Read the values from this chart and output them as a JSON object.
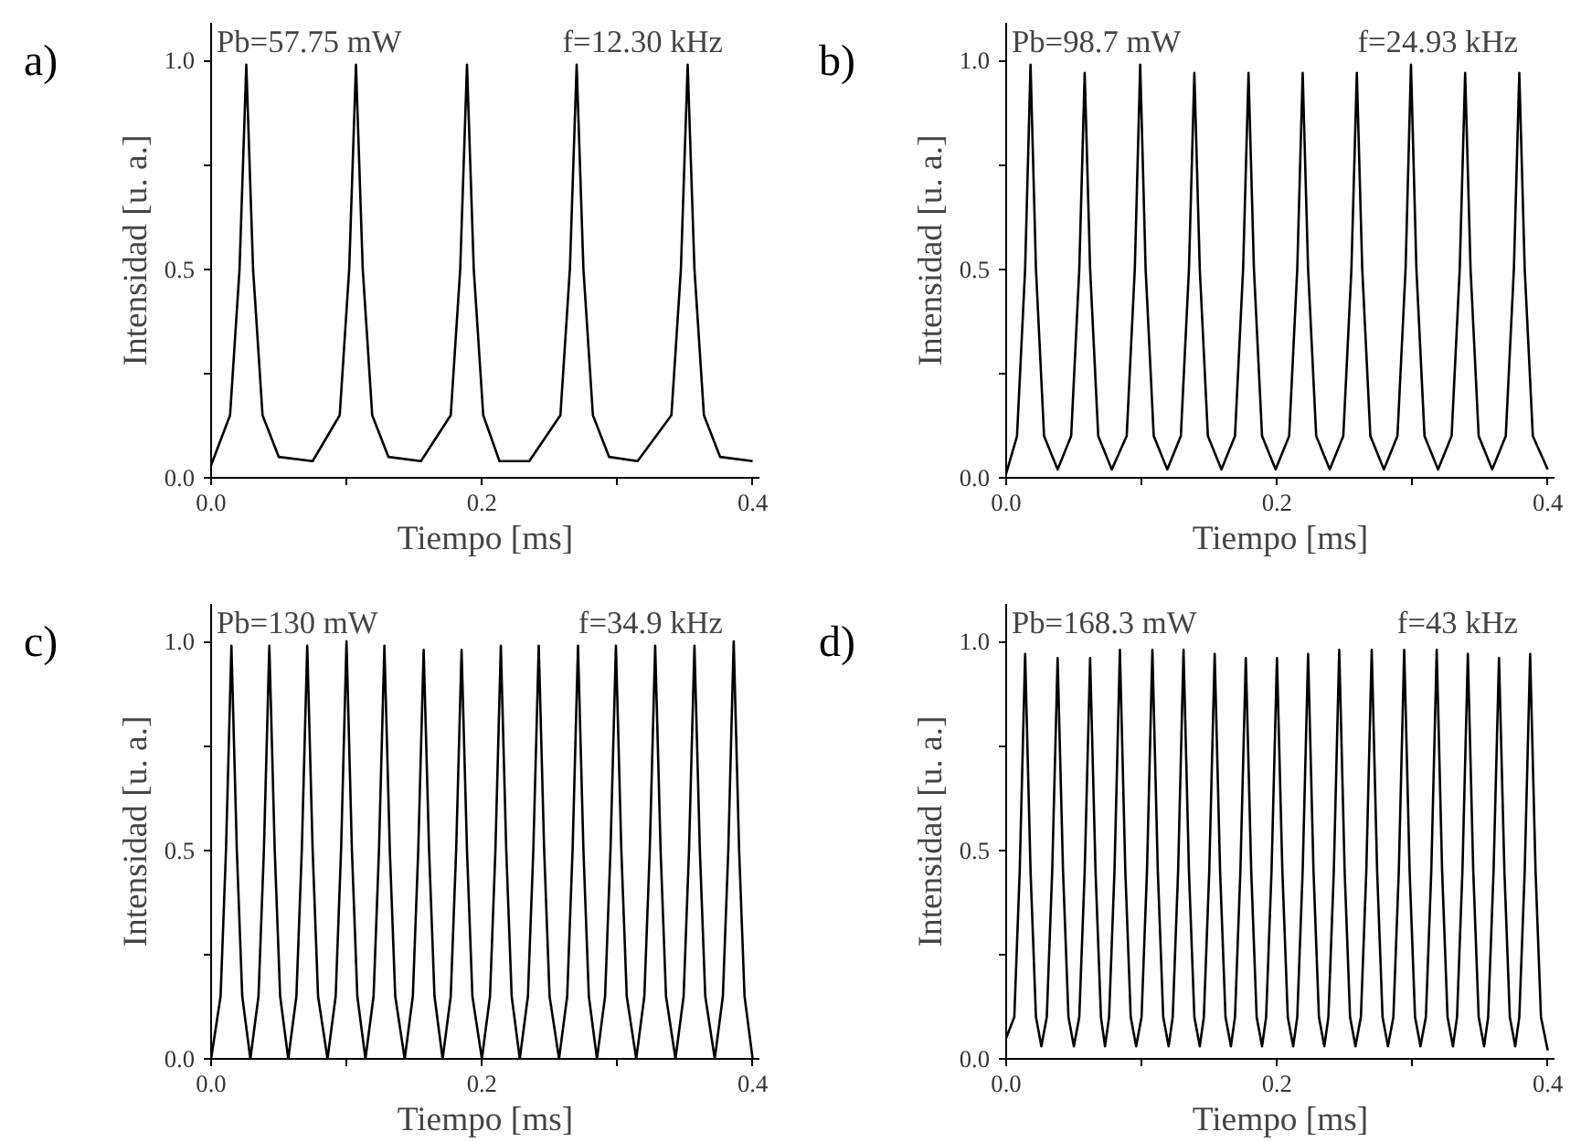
{
  "chart_data": [
    {
      "type": "line",
      "xlabel": "Tiempo [ms]",
      "ylabel": "Intensidad [u. a.]",
      "annotations": [
        "a)",
        "Pb=57.75 mW",
        "f=12.30 kHz"
      ],
      "xlim": [
        0,
        0.405
      ],
      "ylim": [
        0,
        1.09
      ],
      "xticks": [
        {
          "value": 0,
          "label": "0.0"
        },
        {
          "value": 0.1,
          "label": null
        },
        {
          "value": 0.2,
          "label": "0.2"
        },
        {
          "value": 0.3,
          "label": null
        },
        {
          "value": 0.4,
          "label": "0.4"
        }
      ],
      "yticks": [
        {
          "value": 0,
          "label": "0.0"
        },
        {
          "value": 0.25,
          "label": null
        },
        {
          "value": 0.5,
          "label": "0.5"
        },
        {
          "value": 0.75,
          "label": null
        },
        {
          "value": 1,
          "label": "1.0"
        }
      ],
      "grid": false,
      "line_style": "solid",
      "x": [
        0,
        0.014,
        0.021,
        0.026,
        0.031,
        0.038,
        0.05,
        0.075,
        0.095,
        0.102,
        0.107,
        0.112,
        0.119,
        0.131,
        0.155,
        0.177,
        0.184,
        0.189,
        0.194,
        0.201,
        0.213,
        0.235,
        0.258,
        0.265,
        0.27,
        0.275,
        0.282,
        0.294,
        0.315,
        0.34,
        0.347,
        0.352,
        0.357,
        0.364,
        0.376,
        0.4
      ],
      "series": [
        {
          "color": "#000000",
          "values": [
            0.03,
            0.15,
            0.5,
            0.99,
            0.5,
            0.15,
            0.05,
            0.04,
            0.15,
            0.5,
            0.99,
            0.5,
            0.15,
            0.05,
            0.04,
            0.15,
            0.5,
            0.99,
            0.5,
            0.15,
            0.04,
            0.04,
            0.15,
            0.5,
            0.99,
            0.5,
            0.15,
            0.05,
            0.04,
            0.15,
            0.5,
            0.99,
            0.5,
            0.15,
            0.05,
            0.04
          ]
        }
      ]
    },
    {
      "type": "line",
      "xlabel": "Tiempo [ms]",
      "ylabel": "Intensidad [u. a.]",
      "annotations": [
        "b)",
        "Pb=98.7 mW",
        "f=24.93 kHz"
      ],
      "xlim": [
        0,
        0.405
      ],
      "ylim": [
        0,
        1.09
      ],
      "xticks": [
        {
          "value": 0,
          "label": "0.0"
        },
        {
          "value": 0.1,
          "label": null
        },
        {
          "value": 0.2,
          "label": "0.2"
        },
        {
          "value": 0.3,
          "label": null
        },
        {
          "value": 0.4,
          "label": "0.4"
        }
      ],
      "yticks": [
        {
          "value": 0,
          "label": "0.0"
        },
        {
          "value": 0.25,
          "label": null
        },
        {
          "value": 0.5,
          "label": "0.5"
        },
        {
          "value": 0.75,
          "label": null
        },
        {
          "value": 1,
          "label": "1.0"
        }
      ],
      "grid": false,
      "line_style": "solid",
      "x": [
        0,
        0.008,
        0.014,
        0.018,
        0.022,
        0.028,
        0.038,
        0.048,
        0.054,
        0.058,
        0.062,
        0.068,
        0.078,
        0.089,
        0.095,
        0.099,
        0.103,
        0.109,
        0.119,
        0.129,
        0.135,
        0.139,
        0.143,
        0.149,
        0.159,
        0.169,
        0.175,
        0.179,
        0.183,
        0.189,
        0.199,
        0.209,
        0.215,
        0.219,
        0.223,
        0.229,
        0.239,
        0.249,
        0.255,
        0.259,
        0.263,
        0.269,
        0.279,
        0.289,
        0.295,
        0.299,
        0.303,
        0.309,
        0.319,
        0.329,
        0.335,
        0.339,
        0.343,
        0.349,
        0.359,
        0.369,
        0.375,
        0.379,
        0.383,
        0.389,
        0.4
      ],
      "series": [
        {
          "color": "#000000",
          "values": [
            0.01,
            0.1,
            0.5,
            0.99,
            0.5,
            0.1,
            0.02,
            0.1,
            0.5,
            0.97,
            0.5,
            0.1,
            0.02,
            0.1,
            0.5,
            0.99,
            0.5,
            0.1,
            0.02,
            0.1,
            0.5,
            0.97,
            0.5,
            0.1,
            0.02,
            0.1,
            0.5,
            0.97,
            0.5,
            0.1,
            0.02,
            0.1,
            0.5,
            0.97,
            0.5,
            0.1,
            0.02,
            0.1,
            0.5,
            0.97,
            0.5,
            0.1,
            0.02,
            0.1,
            0.5,
            0.99,
            0.5,
            0.1,
            0.02,
            0.1,
            0.5,
            0.97,
            0.5,
            0.1,
            0.02,
            0.1,
            0.5,
            0.97,
            0.5,
            0.1,
            0.02
          ]
        }
      ]
    },
    {
      "type": "line",
      "xlabel": "Tiempo [ms]",
      "ylabel": "Intensidad [u. a.]",
      "annotations": [
        "c)",
        "Pb=130 mW",
        "f=34.9 kHz"
      ],
      "xlim": [
        0,
        0.405
      ],
      "ylim": [
        0,
        1.09
      ],
      "xticks": [
        {
          "value": 0,
          "label": "0.0"
        },
        {
          "value": 0.1,
          "label": null
        },
        {
          "value": 0.2,
          "label": "0.2"
        },
        {
          "value": 0.3,
          "label": null
        },
        {
          "value": 0.4,
          "label": "0.4"
        }
      ],
      "yticks": [
        {
          "value": 0,
          "label": "0.0"
        },
        {
          "value": 0.25,
          "label": null
        },
        {
          "value": 0.5,
          "label": "0.5"
        },
        {
          "value": 0.75,
          "label": null
        },
        {
          "value": 1,
          "label": "1.0"
        }
      ],
      "grid": false,
      "line_style": "solid",
      "x": [
        0,
        0.007,
        0.011,
        0.015,
        0.019,
        0.023,
        0.029,
        0.035,
        0.039,
        0.043,
        0.047,
        0.051,
        0.057,
        0.063,
        0.067,
        0.071,
        0.075,
        0.079,
        0.086,
        0.092,
        0.096,
        0.1,
        0.104,
        0.108,
        0.114,
        0.12,
        0.124,
        0.128,
        0.132,
        0.136,
        0.143,
        0.149,
        0.153,
        0.157,
        0.161,
        0.165,
        0.171,
        0.177,
        0.181,
        0.185,
        0.189,
        0.193,
        0.2,
        0.206,
        0.21,
        0.214,
        0.218,
        0.222,
        0.228,
        0.234,
        0.238,
        0.242,
        0.246,
        0.25,
        0.257,
        0.263,
        0.267,
        0.271,
        0.275,
        0.279,
        0.285,
        0.291,
        0.295,
        0.299,
        0.303,
        0.307,
        0.314,
        0.32,
        0.324,
        0.328,
        0.332,
        0.336,
        0.343,
        0.349,
        0.353,
        0.357,
        0.361,
        0.365,
        0.372,
        0.378,
        0.382,
        0.386,
        0.39,
        0.394,
        0.4
      ],
      "series": [
        {
          "color": "#000000",
          "values": [
            0,
            0.15,
            0.5,
            0.99,
            0.5,
            0.15,
            0,
            0.15,
            0.5,
            0.99,
            0.5,
            0.15,
            0,
            0.15,
            0.5,
            0.99,
            0.5,
            0.15,
            0,
            0.15,
            0.5,
            1.0,
            0.5,
            0.15,
            0,
            0.15,
            0.5,
            0.99,
            0.5,
            0.15,
            0,
            0.15,
            0.5,
            0.98,
            0.5,
            0.15,
            0,
            0.15,
            0.5,
            0.98,
            0.5,
            0.15,
            0,
            0.15,
            0.5,
            0.99,
            0.5,
            0.15,
            0,
            0.15,
            0.5,
            0.99,
            0.5,
            0.15,
            0,
            0.15,
            0.5,
            0.99,
            0.5,
            0.15,
            0,
            0.15,
            0.5,
            0.99,
            0.5,
            0.15,
            0,
            0.15,
            0.5,
            0.99,
            0.5,
            0.15,
            0,
            0.15,
            0.5,
            0.99,
            0.5,
            0.15,
            0,
            0.15,
            0.5,
            1.0,
            0.5,
            0.15,
            0
          ]
        }
      ]
    },
    {
      "type": "line",
      "xlabel": "Tiempo [ms]",
      "ylabel": "Intensidad [u. a.]",
      "annotations": [
        "d)",
        "Pb=168.3 mW",
        "f=43 kHz"
      ],
      "xlim": [
        0,
        0.405
      ],
      "ylim": [
        0,
        1.09
      ],
      "xticks": [
        {
          "value": 0,
          "label": "0.0"
        },
        {
          "value": 0.1,
          "label": null
        },
        {
          "value": 0.2,
          "label": "0.2"
        },
        {
          "value": 0.3,
          "label": null
        },
        {
          "value": 0.4,
          "label": "0.4"
        }
      ],
      "yticks": [
        {
          "value": 0,
          "label": "0.0"
        },
        {
          "value": 0.25,
          "label": null
        },
        {
          "value": 0.5,
          "label": "0.5"
        },
        {
          "value": 0.75,
          "label": null
        },
        {
          "value": 1,
          "label": "1.0"
        }
      ],
      "grid": false,
      "line_style": "solid",
      "x": [
        0,
        0.006,
        0.01,
        0.014,
        0.018,
        0.022,
        0.026,
        0.03,
        0.034,
        0.038,
        0.042,
        0.046,
        0.05,
        0.054,
        0.058,
        0.062,
        0.066,
        0.07,
        0.073,
        0.076,
        0.08,
        0.084,
        0.088,
        0.092,
        0.096,
        0.1,
        0.104,
        0.108,
        0.112,
        0.116,
        0.12,
        0.123,
        0.127,
        0.131,
        0.135,
        0.139,
        0.143,
        0.146,
        0.15,
        0.154,
        0.158,
        0.162,
        0.166,
        0.169,
        0.173,
        0.177,
        0.181,
        0.185,
        0.189,
        0.192,
        0.196,
        0.2,
        0.204,
        0.208,
        0.212,
        0.215,
        0.219,
        0.223,
        0.227,
        0.231,
        0.235,
        0.238,
        0.242,
        0.246,
        0.25,
        0.254,
        0.258,
        0.262,
        0.266,
        0.27,
        0.274,
        0.278,
        0.282,
        0.286,
        0.29,
        0.294,
        0.298,
        0.302,
        0.306,
        0.31,
        0.314,
        0.318,
        0.322,
        0.326,
        0.33,
        0.333,
        0.337,
        0.341,
        0.345,
        0.349,
        0.353,
        0.356,
        0.36,
        0.364,
        0.368,
        0.372,
        0.376,
        0.379,
        0.383,
        0.387,
        0.391,
        0.395,
        0.4
      ],
      "series": [
        {
          "color": "#000000",
          "values": [
            0.05,
            0.1,
            0.45,
            0.97,
            0.45,
            0.1,
            0.03,
            0.1,
            0.45,
            0.96,
            0.45,
            0.1,
            0.03,
            0.1,
            0.45,
            0.96,
            0.45,
            0.1,
            0.03,
            0.1,
            0.45,
            0.98,
            0.45,
            0.1,
            0.03,
            0.1,
            0.45,
            0.98,
            0.45,
            0.1,
            0.03,
            0.1,
            0.45,
            0.98,
            0.45,
            0.1,
            0.03,
            0.1,
            0.45,
            0.97,
            0.45,
            0.1,
            0.03,
            0.1,
            0.45,
            0.96,
            0.45,
            0.1,
            0.03,
            0.1,
            0.45,
            0.96,
            0.45,
            0.1,
            0.03,
            0.1,
            0.45,
            0.97,
            0.45,
            0.1,
            0.03,
            0.1,
            0.45,
            0.98,
            0.45,
            0.1,
            0.03,
            0.1,
            0.45,
            0.98,
            0.45,
            0.1,
            0.03,
            0.1,
            0.45,
            0.98,
            0.45,
            0.1,
            0.03,
            0.1,
            0.45,
            0.98,
            0.45,
            0.1,
            0.03,
            0.1,
            0.45,
            0.97,
            0.45,
            0.1,
            0.03,
            0.1,
            0.45,
            0.96,
            0.45,
            0.1,
            0.03,
            0.1,
            0.45,
            0.97,
            0.45,
            0.1,
            0.02
          ]
        }
      ]
    }
  ]
}
